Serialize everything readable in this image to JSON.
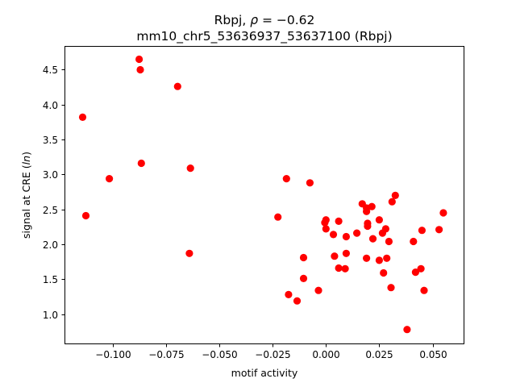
{
  "chart_data": {
    "type": "scatter",
    "title_line1": "Rbpj, ρ = −0.62",
    "title_line2": "mm10_chr5_53636937_53637100 (Rbpj)",
    "xlabel": "motif activity",
    "ylabel": "signal at CRE (ln)",
    "xlim": [
      -0.1225,
      0.0645
    ],
    "ylim": [
      0.58,
      4.84
    ],
    "xticks": [
      {
        "value": -0.1,
        "label": "−0.100"
      },
      {
        "value": -0.075,
        "label": "−0.075"
      },
      {
        "value": -0.05,
        "label": "−0.050"
      },
      {
        "value": -0.025,
        "label": "−0.025"
      },
      {
        "value": 0.0,
        "label": "0.000"
      },
      {
        "value": 0.025,
        "label": "0.025"
      },
      {
        "value": 0.05,
        "label": "0.050"
      }
    ],
    "yticks": [
      {
        "value": 1.0,
        "label": "1.0"
      },
      {
        "value": 1.5,
        "label": "1.5"
      },
      {
        "value": 2.0,
        "label": "2.0"
      },
      {
        "value": 2.5,
        "label": "2.5"
      },
      {
        "value": 3.0,
        "label": "3.0"
      },
      {
        "value": 3.5,
        "label": "3.5"
      },
      {
        "value": 4.0,
        "label": "4.0"
      },
      {
        "value": 4.5,
        "label": "4.5"
      }
    ],
    "marker_color": "#ff0000",
    "grid": false,
    "points": [
      {
        "x": -0.114,
        "y": 3.82
      },
      {
        "x": -0.1125,
        "y": 2.41
      },
      {
        "x": -0.1015,
        "y": 2.94
      },
      {
        "x": -0.0875,
        "y": 4.65
      },
      {
        "x": -0.087,
        "y": 4.5
      },
      {
        "x": -0.0865,
        "y": 3.16
      },
      {
        "x": -0.0695,
        "y": 4.26
      },
      {
        "x": -0.0635,
        "y": 3.09
      },
      {
        "x": -0.064,
        "y": 1.87
      },
      {
        "x": -0.0225,
        "y": 2.39
      },
      {
        "x": -0.0185,
        "y": 2.94
      },
      {
        "x": -0.0175,
        "y": 1.28
      },
      {
        "x": -0.0135,
        "y": 1.19
      },
      {
        "x": -0.0105,
        "y": 1.81
      },
      {
        "x": -0.0105,
        "y": 1.51
      },
      {
        "x": -0.0075,
        "y": 2.88
      },
      {
        "x": -0.0035,
        "y": 1.34
      },
      {
        "x": -0.0005,
        "y": 2.31
      },
      {
        "x": 0.0,
        "y": 2.35
      },
      {
        "x": 0.0,
        "y": 2.22
      },
      {
        "x": 0.0035,
        "y": 2.14
      },
      {
        "x": 0.004,
        "y": 1.83
      },
      {
        "x": 0.006,
        "y": 2.33
      },
      {
        "x": 0.006,
        "y": 1.66
      },
      {
        "x": 0.0095,
        "y": 2.11
      },
      {
        "x": 0.0095,
        "y": 1.87
      },
      {
        "x": 0.009,
        "y": 1.65
      },
      {
        "x": 0.0145,
        "y": 2.16
      },
      {
        "x": 0.017,
        "y": 2.58
      },
      {
        "x": 0.019,
        "y": 2.52
      },
      {
        "x": 0.019,
        "y": 2.47
      },
      {
        "x": 0.0195,
        "y": 2.3
      },
      {
        "x": 0.0195,
        "y": 2.26
      },
      {
        "x": 0.019,
        "y": 1.8
      },
      {
        "x": 0.0215,
        "y": 2.54
      },
      {
        "x": 0.022,
        "y": 2.08
      },
      {
        "x": 0.025,
        "y": 2.35
      },
      {
        "x": 0.025,
        "y": 1.77
      },
      {
        "x": 0.0265,
        "y": 2.16
      },
      {
        "x": 0.027,
        "y": 1.59
      },
      {
        "x": 0.028,
        "y": 2.22
      },
      {
        "x": 0.0285,
        "y": 1.8
      },
      {
        "x": 0.0295,
        "y": 2.04
      },
      {
        "x": 0.0305,
        "y": 1.38
      },
      {
        "x": 0.031,
        "y": 2.61
      },
      {
        "x": 0.0325,
        "y": 2.7
      },
      {
        "x": 0.038,
        "y": 0.78
      },
      {
        "x": 0.041,
        "y": 2.04
      },
      {
        "x": 0.042,
        "y": 1.6
      },
      {
        "x": 0.0445,
        "y": 1.65
      },
      {
        "x": 0.045,
        "y": 2.2
      },
      {
        "x": 0.046,
        "y": 1.34
      },
      {
        "x": 0.053,
        "y": 2.21
      },
      {
        "x": 0.055,
        "y": 2.45
      }
    ]
  }
}
